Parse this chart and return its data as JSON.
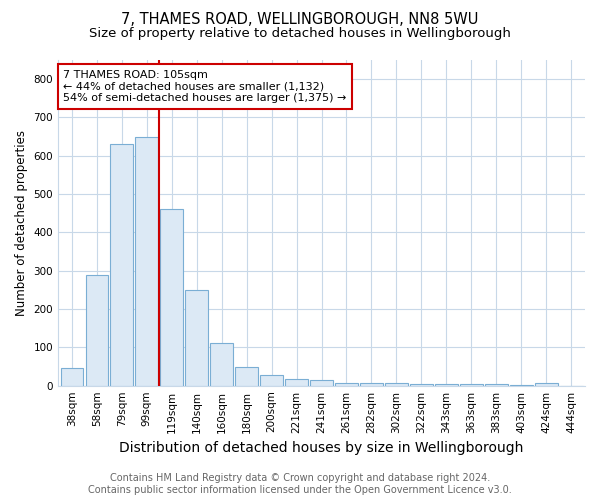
{
  "title": "7, THAMES ROAD, WELLINGBOROUGH, NN8 5WU",
  "subtitle": "Size of property relative to detached houses in Wellingborough",
  "xlabel": "Distribution of detached houses by size in Wellingborough",
  "ylabel": "Number of detached properties",
  "footer_line1": "Contains HM Land Registry data © Crown copyright and database right 2024.",
  "footer_line2": "Contains public sector information licensed under the Open Government Licence v3.0.",
  "bins": [
    "38sqm",
    "58sqm",
    "79sqm",
    "99sqm",
    "119sqm",
    "140sqm",
    "160sqm",
    "180sqm",
    "200sqm",
    "221sqm",
    "241sqm",
    "261sqm",
    "282sqm",
    "302sqm",
    "322sqm",
    "343sqm",
    "363sqm",
    "383sqm",
    "403sqm",
    "424sqm",
    "444sqm"
  ],
  "values": [
    45,
    290,
    630,
    650,
    460,
    250,
    112,
    50,
    27,
    17,
    15,
    8,
    6,
    7,
    5,
    5,
    5,
    4,
    1,
    8,
    0
  ],
  "bar_color": "#dce9f5",
  "bar_edge_color": "#7aaed4",
  "vline_x": 3.5,
  "vline_color": "#cc0000",
  "annotation_line1": "7 THAMES ROAD: 105sqm",
  "annotation_line2": "← 44% of detached houses are smaller (1,132)",
  "annotation_line3": "54% of semi-detached houses are larger (1,375) →",
  "annotation_box_color": "#ffffff",
  "annotation_box_edge": "#cc0000",
  "ylim": [
    0,
    850
  ],
  "yticks": [
    0,
    100,
    200,
    300,
    400,
    500,
    600,
    700,
    800
  ],
  "background_color": "#ffffff",
  "plot_bg_color": "#ffffff",
  "grid_color": "#c8d8e8",
  "title_fontsize": 10.5,
  "subtitle_fontsize": 9.5,
  "xlabel_fontsize": 10,
  "ylabel_fontsize": 8.5,
  "tick_fontsize": 7.5,
  "annotation_fontsize": 8,
  "footer_fontsize": 7
}
